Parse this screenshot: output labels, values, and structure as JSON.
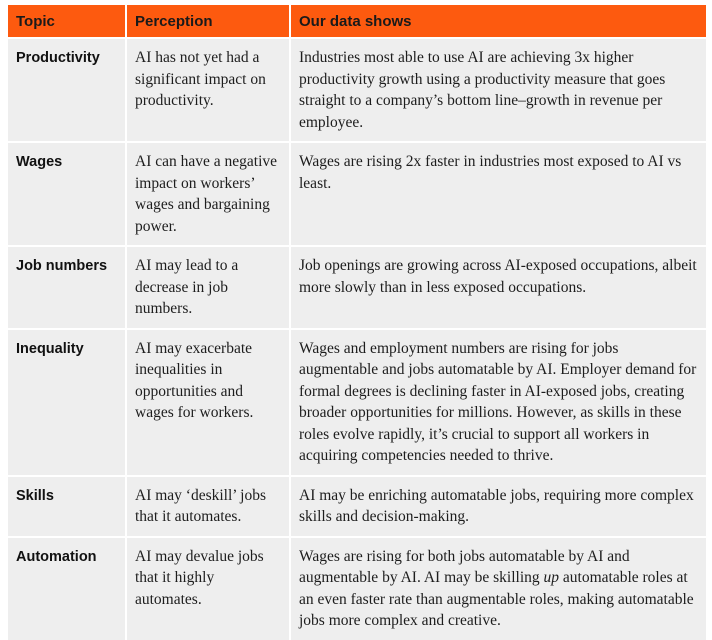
{
  "table": {
    "headers": {
      "topic": "Topic",
      "perception": "Perception",
      "data": "Our data shows"
    },
    "rows": [
      {
        "topic": "Productivity",
        "perception": "AI has not yet had a significant impact on productivity.",
        "data": "Industries most able to use AI are achieving 3x higher productivity growth using a productivity measure that goes straight to a company’s bottom line–growth in revenue per employee."
      },
      {
        "topic": "Wages",
        "perception": "AI can have a negative impact on workers’ wages and bargaining power.",
        "data": "Wages are rising 2x faster in industries most exposed to AI vs least."
      },
      {
        "topic": "Job numbers",
        "perception": "AI may lead to a decrease in job numbers.",
        "data": "Job openings are growing across AI-exposed occupations, albeit more slowly than in less exposed occupations."
      },
      {
        "topic": "Inequality",
        "perception": "AI may exacerbate inequalities in opportunities and wages for workers.",
        "data": "Wages and employment numbers are rising for jobs augmentable and jobs automatable by AI. Employer demand for formal degrees is declining faster in AI-exposed jobs, creating broader opportunities for millions. However, as skills in these roles evolve rapidly, it’s crucial to support all workers in acquiring competencies needed to thrive."
      },
      {
        "topic": "Skills",
        "perception": "AI may ‘deskill’ jobs that it automates.",
        "data": "AI may be enriching automatable jobs, requiring more complex skills and decision-making."
      },
      {
        "topic": "Automation",
        "perception": "AI may devalue jobs that it highly automates.",
        "data_before": "Wages are rising for both jobs automatable by AI and augmentable by AI. AI may be skilling ",
        "data_emph": "up",
        "data_after": " automatable roles at an even faster rate than augmentable roles, making automatable jobs more complex and creative."
      }
    ]
  }
}
